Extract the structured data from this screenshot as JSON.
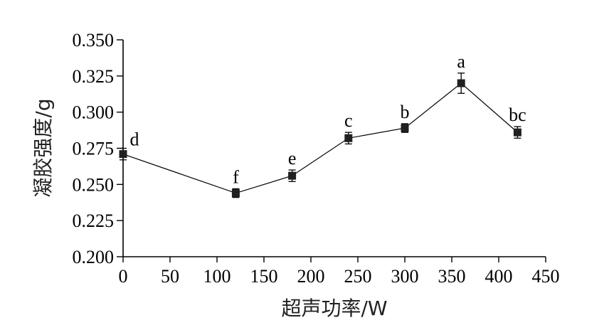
{
  "chart_data": {
    "type": "line",
    "title": "",
    "xlabel": "超声功率/W",
    "ylabel": "凝胶强度/g",
    "xlim": [
      0,
      450
    ],
    "ylim": [
      0.2,
      0.35
    ],
    "xticks": [
      "0",
      "50",
      "100",
      "150",
      "200",
      "250",
      "300",
      "350",
      "400",
      "450"
    ],
    "yticks": [
      "0.200",
      "0.225",
      "0.250",
      "0.275",
      "0.300",
      "0.325",
      "0.350"
    ],
    "grid": false,
    "legend": "none",
    "series": [
      {
        "x": [
          0,
          120,
          180,
          240,
          300,
          360,
          420
        ],
        "y": [
          0.271,
          0.244,
          0.256,
          0.282,
          0.289,
          0.32,
          0.286
        ],
        "error": [
          0.004,
          0.003,
          0.004,
          0.004,
          0.003,
          0.007,
          0.004
        ],
        "labels": [
          "d",
          "f",
          "e",
          "c",
          "b",
          "a",
          "bc"
        ]
      }
    ]
  }
}
